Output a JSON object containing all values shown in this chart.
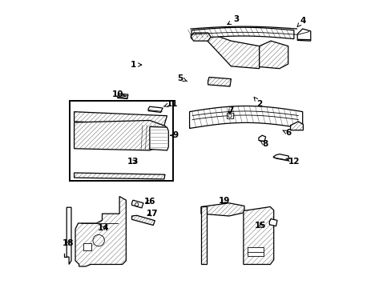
{
  "bg_color": "#ffffff",
  "line_color": "#000000",
  "fig_width": 4.89,
  "fig_height": 3.6,
  "dpi": 100,
  "annotation_fontsize": 7.5,
  "lw_main": 0.9,
  "lw_thin": 0.6,
  "hatch_lw": 0.4,
  "parts_color": "#e8e8e8",
  "labels": {
    "1": {
      "txt": [
        0.282,
        0.775
      ],
      "arr": [
        0.315,
        0.775
      ]
    },
    "2": {
      "txt": [
        0.72,
        0.64
      ],
      "arr": [
        0.7,
        0.665
      ]
    },
    "3": {
      "txt": [
        0.64,
        0.932
      ],
      "arr": [
        0.6,
        0.91
      ]
    },
    "4": {
      "txt": [
        0.87,
        0.928
      ],
      "arr": [
        0.85,
        0.905
      ]
    },
    "5": {
      "txt": [
        0.445,
        0.728
      ],
      "arr": [
        0.47,
        0.718
      ]
    },
    "6": {
      "txt": [
        0.82,
        0.538
      ],
      "arr": [
        0.8,
        0.548
      ]
    },
    "7": {
      "txt": [
        0.62,
        0.618
      ],
      "arr": [
        0.608,
        0.6
      ]
    },
    "8": {
      "txt": [
        0.74,
        0.5
      ],
      "arr": [
        0.722,
        0.512
      ]
    },
    "9": {
      "txt": [
        0.43,
        0.53
      ],
      "arr": [
        0.41,
        0.53
      ]
    },
    "10": {
      "txt": [
        0.23,
        0.672
      ],
      "arr": [
        0.258,
        0.665
      ]
    },
    "11": {
      "txt": [
        0.418,
        0.64
      ],
      "arr": [
        0.388,
        0.63
      ]
    },
    "12": {
      "txt": [
        0.84,
        0.44
      ],
      "arr": [
        0.812,
        0.45
      ]
    },
    "13": {
      "txt": [
        0.282,
        0.438
      ],
      "arr": [
        0.305,
        0.445
      ]
    },
    "14": {
      "txt": [
        0.18,
        0.208
      ],
      "arr": [
        0.198,
        0.22
      ]
    },
    "15": {
      "txt": [
        0.725,
        0.218
      ],
      "arr": [
        0.72,
        0.235
      ]
    },
    "16": {
      "txt": [
        0.34,
        0.3
      ],
      "arr": [
        0.316,
        0.292
      ]
    },
    "17": {
      "txt": [
        0.348,
        0.258
      ],
      "arr": [
        0.322,
        0.248
      ]
    },
    "18": {
      "txt": [
        0.057,
        0.155
      ],
      "arr": [
        0.068,
        0.172
      ]
    },
    "19": {
      "txt": [
        0.598,
        0.302
      ],
      "arr": [
        0.582,
        0.285
      ]
    }
  }
}
